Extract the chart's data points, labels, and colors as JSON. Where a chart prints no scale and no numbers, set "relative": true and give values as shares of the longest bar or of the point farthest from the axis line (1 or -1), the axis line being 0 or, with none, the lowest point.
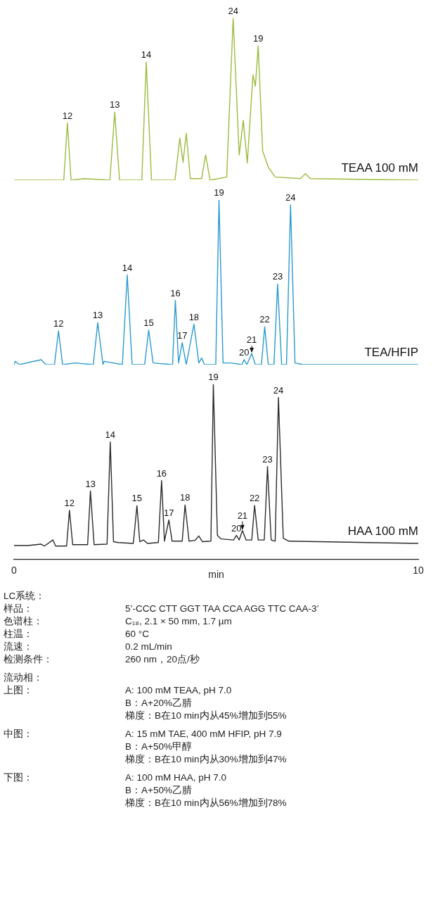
{
  "chart_data": [
    {
      "type": "line",
      "relative": true,
      "xlim": [
        0,
        10
      ],
      "tick_labels": false,
      "legend": false,
      "x": [
        0,
        0.13,
        1.23,
        1.32,
        1.41,
        1.75,
        2.37,
        2.49,
        2.61,
        3.16,
        3.27,
        3.4,
        3.98,
        4.1,
        4.18,
        4.26,
        4.36,
        4.64,
        4.74,
        4.85,
        5.26,
        5.42,
        5.57,
        5.67,
        5.77,
        5.91,
        5.97,
        6.04,
        6.15,
        6.29,
        6.46,
        7.08,
        7.21,
        7.33,
        10
      ],
      "series": [
        {
          "name": "TEAA 100 mM",
          "color": "#9dbb3e",
          "values": [
            0,
            0,
            0,
            0.354,
            0,
            0.01,
            0,
            0.42,
            0,
            0,
            0.73,
            0,
            0,
            0.26,
            0.11,
            0.29,
            0.01,
            0.01,
            0.156,
            0,
            0.02,
            1,
            0.156,
            0.37,
            0.106,
            0.65,
            0.58,
            0.83,
            0.18,
            0.08,
            0.02,
            0.01,
            0.04,
            0.01,
            0
          ]
        }
      ],
      "annotations": [
        {
          "text": "12",
          "x": 1.32,
          "y": 0.354
        },
        {
          "text": "13",
          "x": 2.49,
          "y": 0.42
        },
        {
          "text": "14",
          "x": 3.27,
          "y": 0.73
        },
        {
          "text": "24",
          "x": 5.42,
          "y": 1
        },
        {
          "text": "19",
          "x": 6.04,
          "y": 0.83
        }
      ]
    },
    {
      "type": "line",
      "relative": true,
      "xlim": [
        0,
        10
      ],
      "tick_labels": false,
      "legend": false,
      "x": [
        0,
        0.03,
        0.13,
        0.67,
        0.79,
        1.0,
        1.1,
        1.2,
        1.51,
        1.96,
        2.07,
        2.2,
        2.23,
        2.68,
        2.8,
        2.92,
        3.23,
        3.33,
        3.44,
        3.92,
        3.99,
        4.07,
        4.16,
        4.26,
        4.45,
        4.57,
        4.64,
        4.71,
        4.99,
        5.07,
        5.17,
        5.36,
        5.64,
        5.69,
        5.76,
        5.88,
        5.97,
        6.12,
        6.2,
        6.29,
        6.43,
        6.52,
        6.62,
        6.74,
        6.84,
        6.95,
        7.15,
        10
      ],
      "series": [
        {
          "name": "TEA/HFIP",
          "color": "#2b9ad0",
          "values": [
            0,
            0.02,
            0,
            0.03,
            0,
            0,
            0.205,
            0,
            0.01,
            0,
            0.255,
            0,
            0.02,
            0,
            0.545,
            0,
            0,
            0.21,
            0.01,
            0,
            0.39,
            0.01,
            0.134,
            0,
            0.246,
            0.01,
            0.04,
            0,
            0,
            1,
            0.01,
            0.01,
            0,
            0.03,
            0,
            0.068,
            0,
            0,
            0.23,
            0,
            0,
            0.49,
            0,
            0,
            0.97,
            0.01,
            0,
            0
          ]
        }
      ],
      "annotations": [
        {
          "text": "12",
          "x": 1.1,
          "y": 0.205
        },
        {
          "text": "13",
          "x": 2.07,
          "y": 0.255
        },
        {
          "text": "14",
          "x": 2.8,
          "y": 0.545
        },
        {
          "text": "15",
          "x": 3.33,
          "y": 0.21
        },
        {
          "text": "16",
          "x": 3.99,
          "y": 0.39
        },
        {
          "text": "17",
          "x": 4.16,
          "y": 0.134
        },
        {
          "text": "18",
          "x": 4.45,
          "y": 0.246
        },
        {
          "text": "19",
          "x": 5.07,
          "y": 1
        },
        {
          "text": "20",
          "x": 5.69,
          "y": 0.03
        },
        {
          "text": "21",
          "x": 5.88,
          "y": 0.068
        },
        {
          "text": "22",
          "x": 6.2,
          "y": 0.23
        },
        {
          "text": "23",
          "x": 6.52,
          "y": 0.49
        },
        {
          "text": "24",
          "x": 6.84,
          "y": 0.97
        }
      ]
    },
    {
      "type": "line",
      "relative": true,
      "xlim": [
        0,
        10
      ],
      "xticks": [
        0,
        10
      ],
      "xlabel": "min",
      "legend": false,
      "x": [
        0,
        0.34,
        0.67,
        0.75,
        0.96,
        1.03,
        1.3,
        1.37,
        1.45,
        1.82,
        1.89,
        1.98,
        2.3,
        2.38,
        2.46,
        2.57,
        2.95,
        3.04,
        3.11,
        3.2,
        3.3,
        3.57,
        3.65,
        3.72,
        3.83,
        3.91,
        4.16,
        4.23,
        4.33,
        4.48,
        4.57,
        4.66,
        4.87,
        4.93,
        5.03,
        5.12,
        5.43,
        5.5,
        5.57,
        5.65,
        5.74,
        5.88,
        5.95,
        6.04,
        6.19,
        6.27,
        6.36,
        6.46,
        6.54,
        6.66,
        6.8,
        10
      ],
      "series": [
        {
          "name": "HAA 100 mM",
          "color": "#2b2b2b",
          "values": [
            0.078,
            0.078,
            0.086,
            0.075,
            0.11,
            0.075,
            0.075,
            0.28,
            0.083,
            0.083,
            0.39,
            0.083,
            0.086,
            0.67,
            0.1,
            0.095,
            0.09,
            0.306,
            0.1,
            0.11,
            0.09,
            0.095,
            0.45,
            0.103,
            0.224,
            0.103,
            0.103,
            0.31,
            0.103,
            0.108,
            0.133,
            0.1,
            0.103,
            1,
            0.136,
            0.116,
            0.11,
            0.136,
            0.11,
            0.164,
            0.11,
            0.11,
            0.307,
            0.11,
            0.11,
            0.53,
            0.11,
            0.103,
            0.925,
            0.12,
            0.103,
            0.09
          ]
        }
      ],
      "annotations": [
        {
          "text": "12",
          "x": 1.37,
          "y": 0.28
        },
        {
          "text": "13",
          "x": 1.89,
          "y": 0.39
        },
        {
          "text": "14",
          "x": 2.38,
          "y": 0.67
        },
        {
          "text": "15",
          "x": 3.04,
          "y": 0.306
        },
        {
          "text": "16",
          "x": 3.65,
          "y": 0.45
        },
        {
          "text": "17",
          "x": 3.83,
          "y": 0.224
        },
        {
          "text": "18",
          "x": 4.23,
          "y": 0.31
        },
        {
          "text": "19",
          "x": 4.93,
          "y": 1
        },
        {
          "text": "20",
          "x": 5.5,
          "y": 0.136
        },
        {
          "text": "21",
          "x": 5.65,
          "y": 0.164
        },
        {
          "text": "22",
          "x": 5.95,
          "y": 0.307
        },
        {
          "text": "23",
          "x": 6.27,
          "y": 0.53
        },
        {
          "text": "24",
          "x": 6.54,
          "y": 0.925
        }
      ]
    },
    {
      "type": "other",
      "annotations": [
        "LC系统：",
        "样品：\t5’-CCC CTT GGT TAA CCA AGG TTC CAA-3’",
        "色谱柱：\tC₁₈, 2.1 × 50 mm, 1.7 µm",
        "柱温：\t60 °C",
        "流速：\t0.2 mL/min",
        "检测条件：\t260 nm，20点/秒",
        "流动相：",
        "上图：\tA: 100 mM TEAA, pH 7.0",
        "\tB：A+20%乙腈",
        "\t梯度：B在10 min内从45%增加到55%",
        "中图：\tA: 15 mM TAE, 400 mM HFIP, pH 7.9",
        "\tB：A+50%甲醇",
        "\t梯度：B在10 min内从30%增加到47%",
        "下图：\tA: 100 mM HAA, pH 7.0",
        "\tB：A+50%乙腈",
        "\t梯度：B在10 min内从56%增加到78%"
      ]
    }
  ]
}
